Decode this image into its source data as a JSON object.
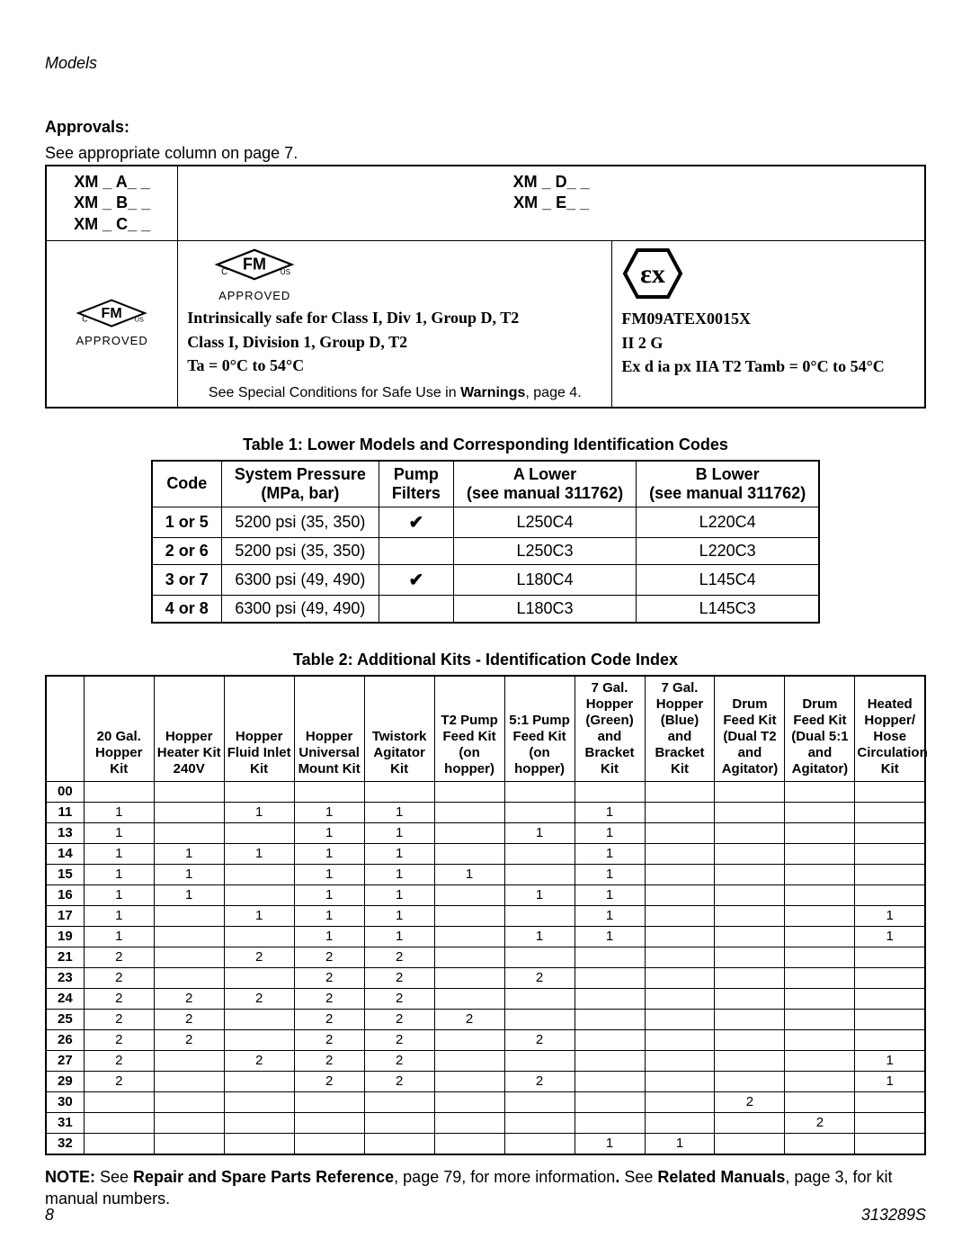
{
  "header": {
    "models": "Models"
  },
  "approvals": {
    "heading": "Approvals:",
    "see_column": "See appropriate column on page 7.",
    "left_codes": [
      "XM _ A_ _",
      "XM _ B_ _",
      "XM _ C_ _"
    ],
    "right_codes": [
      "XM _ D_ _",
      "XM _ E_ _"
    ],
    "fm_label": "FM",
    "approved_label": "APPROVED",
    "c_label": "C",
    "us_label": "US",
    "intrinsic_line1": "Intrinsically safe for Class I, Div 1, Group D, T2",
    "intrinsic_line2": "Class I, Division 1, Group D, T2",
    "intrinsic_line3": "Ta = 0°C to 54°C",
    "special_prefix": "See Special Conditions for Safe Use in ",
    "special_bold": "Warnings",
    "special_suffix": ", page 4.",
    "ex_glyph": "εx",
    "ex_line1": "FM09ATEX0015X",
    "ex_line2": "II 2 G",
    "ex_line3": "Ex d ia px IIA T2 Tamb = 0°C to 54°C"
  },
  "table1": {
    "caption": "Table 1: Lower Models and Corresponding Identification Codes",
    "headers": [
      "Code",
      "System Pressure\n(MPa, bar)",
      "Pump\nFilters",
      "A Lower\n(see manual 311762)",
      "B Lower\n(see manual 311762)"
    ],
    "rows": [
      {
        "code": "1 or 5",
        "pressure": "5200 psi (35, 350)",
        "filter": "✔",
        "a": "L250C4",
        "b": "L220C4"
      },
      {
        "code": "2 or 6",
        "pressure": "5200 psi (35, 350)",
        "filter": "",
        "a": "L250C3",
        "b": "L220C3"
      },
      {
        "code": "3 or 7",
        "pressure": "6300 psi (49, 490)",
        "filter": "✔",
        "a": "L180C4",
        "b": "L145C4"
      },
      {
        "code": "4 or 8",
        "pressure": "6300 psi (49, 490)",
        "filter": "",
        "a": "L180C3",
        "b": "L145C3"
      }
    ]
  },
  "table2": {
    "caption": "Table 2: Additional Kits - Identification Code Index",
    "headers": [
      "",
      "20 Gal. Hopper Kit",
      "Hopper Heater Kit 240V",
      "Hopper Fluid Inlet Kit",
      "Hopper Universal Mount Kit",
      "Twistork Agitator Kit",
      "T2 Pump Feed Kit (on hopper)",
      "5:1 Pump Feed Kit (on hopper)",
      "7 Gal. Hopper (Green) and Bracket Kit",
      "7 Gal. Hopper (Blue) and Bracket Kit",
      "Drum Feed Kit (Dual T2 and Agitator)",
      "Drum Feed Kit (Dual 5:1 and Agitator)",
      "Heated Hopper/ Hose Circulation Kit"
    ],
    "rows": [
      {
        "code": "00",
        "c": [
          "",
          "",
          "",
          "",
          "",
          "",
          "",
          "",
          "",
          "",
          "",
          ""
        ]
      },
      {
        "code": "11",
        "c": [
          "1",
          "",
          "1",
          "1",
          "1",
          "",
          "",
          "1",
          "",
          "",
          "",
          ""
        ]
      },
      {
        "code": "13",
        "c": [
          "1",
          "",
          "",
          "1",
          "1",
          "",
          "1",
          "1",
          "",
          "",
          "",
          ""
        ]
      },
      {
        "code": "14",
        "c": [
          "1",
          "1",
          "1",
          "1",
          "1",
          "",
          "",
          "1",
          "",
          "",
          "",
          ""
        ]
      },
      {
        "code": "15",
        "c": [
          "1",
          "1",
          "",
          "1",
          "1",
          "1",
          "",
          "1",
          "",
          "",
          "",
          ""
        ]
      },
      {
        "code": "16",
        "c": [
          "1",
          "1",
          "",
          "1",
          "1",
          "",
          "1",
          "1",
          "",
          "",
          "",
          ""
        ]
      },
      {
        "code": "17",
        "c": [
          "1",
          "",
          "1",
          "1",
          "1",
          "",
          "",
          "1",
          "",
          "",
          "",
          "1"
        ]
      },
      {
        "code": "19",
        "c": [
          "1",
          "",
          "",
          "1",
          "1",
          "",
          "1",
          "1",
          "",
          "",
          "",
          "1"
        ]
      },
      {
        "code": "21",
        "c": [
          "2",
          "",
          "2",
          "2",
          "2",
          "",
          "",
          "",
          "",
          "",
          "",
          ""
        ]
      },
      {
        "code": "23",
        "c": [
          "2",
          "",
          "",
          "2",
          "2",
          "",
          "2",
          "",
          "",
          "",
          "",
          ""
        ]
      },
      {
        "code": "24",
        "c": [
          "2",
          "2",
          "2",
          "2",
          "2",
          "",
          "",
          "",
          "",
          "",
          "",
          ""
        ]
      },
      {
        "code": "25",
        "c": [
          "2",
          "2",
          "",
          "2",
          "2",
          "2",
          "",
          "",
          "",
          "",
          "",
          ""
        ]
      },
      {
        "code": "26",
        "c": [
          "2",
          "2",
          "",
          "2",
          "2",
          "",
          "2",
          "",
          "",
          "",
          "",
          ""
        ]
      },
      {
        "code": "27",
        "c": [
          "2",
          "",
          "2",
          "2",
          "2",
          "",
          "",
          "",
          "",
          "",
          "",
          "1"
        ]
      },
      {
        "code": "29",
        "c": [
          "2",
          "",
          "",
          "2",
          "2",
          "",
          "2",
          "",
          "",
          "",
          "",
          "1"
        ]
      },
      {
        "code": "30",
        "c": [
          "",
          "",
          "",
          "",
          "",
          "",
          "",
          "",
          "",
          "2",
          "",
          ""
        ]
      },
      {
        "code": "31",
        "c": [
          "",
          "",
          "",
          "",
          "",
          "",
          "",
          "",
          "",
          "",
          "2",
          ""
        ]
      },
      {
        "code": "32",
        "c": [
          "",
          "",
          "",
          "",
          "",
          "",
          "",
          "1",
          "1",
          "",
          "",
          ""
        ]
      }
    ]
  },
  "note": {
    "prefix": "NOTE: ",
    "t1": "See ",
    "b1": "Repair and Spare Parts Reference",
    "t2": ", page 79, for more information",
    "b2": ". ",
    "t3": "See ",
    "b3": "Related Manuals",
    "t4": ", page 3, for kit manual numbers."
  },
  "footer": {
    "page": "8",
    "doc": "313289S"
  }
}
